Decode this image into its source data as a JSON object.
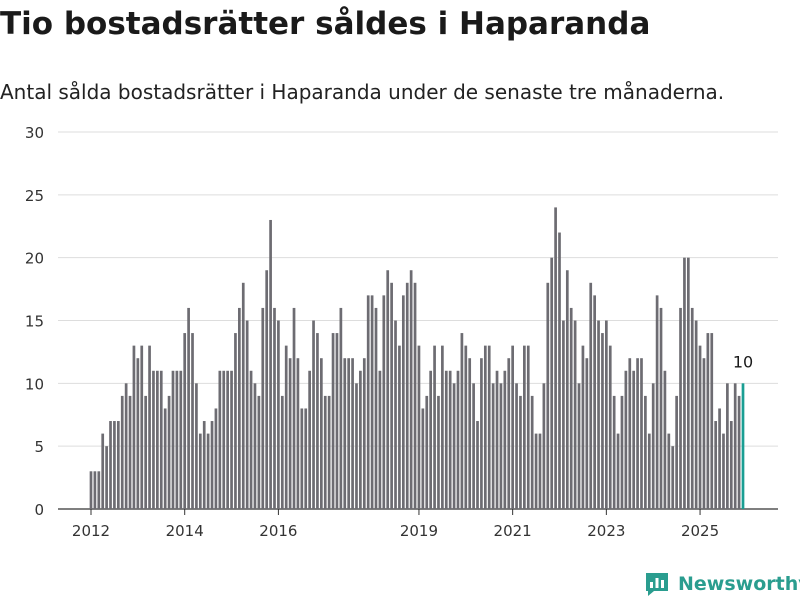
{
  "title": "Tio bostadsrätter såldes i Haparanda",
  "subtitle": "Antal sålda bostadsrätter i Haparanda under de senaste tre månaderna.",
  "brand": {
    "name": "Newsworthy",
    "icon": "newsworthy-chart-icon"
  },
  "colors": {
    "bar": "#6d6c72",
    "highlight": "#1a9e93",
    "grid": "#dddddd",
    "brand": "#2a9d8f"
  },
  "chart_data": {
    "type": "bar",
    "title": "Tio bostadsrätter såldes i Haparanda",
    "subtitle": "Antal sålda bostadsrätter i Haparanda under de senaste tre månaderna.",
    "xlabel": "",
    "ylabel": "",
    "ylim": [
      0,
      30
    ],
    "yticks": [
      0,
      5,
      10,
      15,
      20,
      25,
      30
    ],
    "xticks": [
      "2012",
      "2014",
      "2016",
      "2019",
      "2021",
      "2023",
      "2025"
    ],
    "grid": true,
    "x_start": "2012-01",
    "x_end": "2025-07",
    "frequency": "monthly",
    "values": [
      3,
      3,
      3,
      6,
      5,
      7,
      7,
      7,
      9,
      10,
      9,
      13,
      12,
      13,
      9,
      13,
      11,
      11,
      11,
      8,
      9,
      11,
      11,
      11,
      14,
      16,
      14,
      10,
      6,
      7,
      6,
      7,
      8,
      11,
      11,
      11,
      11,
      14,
      16,
      18,
      15,
      11,
      10,
      9,
      16,
      19,
      23,
      16,
      15,
      9,
      13,
      12,
      16,
      12,
      8,
      8,
      11,
      15,
      14,
      12,
      9,
      9,
      14,
      14,
      16,
      12,
      12,
      12,
      10,
      11,
      12,
      17,
      17,
      16,
      11,
      17,
      19,
      18,
      15,
      13,
      17,
      18,
      19,
      18,
      13,
      8,
      9,
      11,
      13,
      9,
      13,
      11,
      11,
      10,
      11,
      14,
      13,
      12,
      10,
      7,
      12,
      13,
      13,
      10,
      11,
      10,
      11,
      12,
      13,
      10,
      9,
      13,
      13,
      9,
      6,
      6,
      10,
      18,
      20,
      24,
      22,
      15,
      19,
      16,
      15,
      10,
      13,
      12,
      18,
      17,
      15,
      14,
      15,
      13,
      9,
      6,
      9,
      11,
      12,
      11,
      12,
      12,
      9,
      6,
      10,
      17,
      16,
      11,
      6,
      5,
      9,
      16,
      20,
      20,
      16,
      15,
      13,
      12,
      14,
      14,
      7,
      8,
      6,
      10,
      7,
      10,
      9,
      10
    ],
    "highlight_last": true,
    "last_label": "10"
  }
}
